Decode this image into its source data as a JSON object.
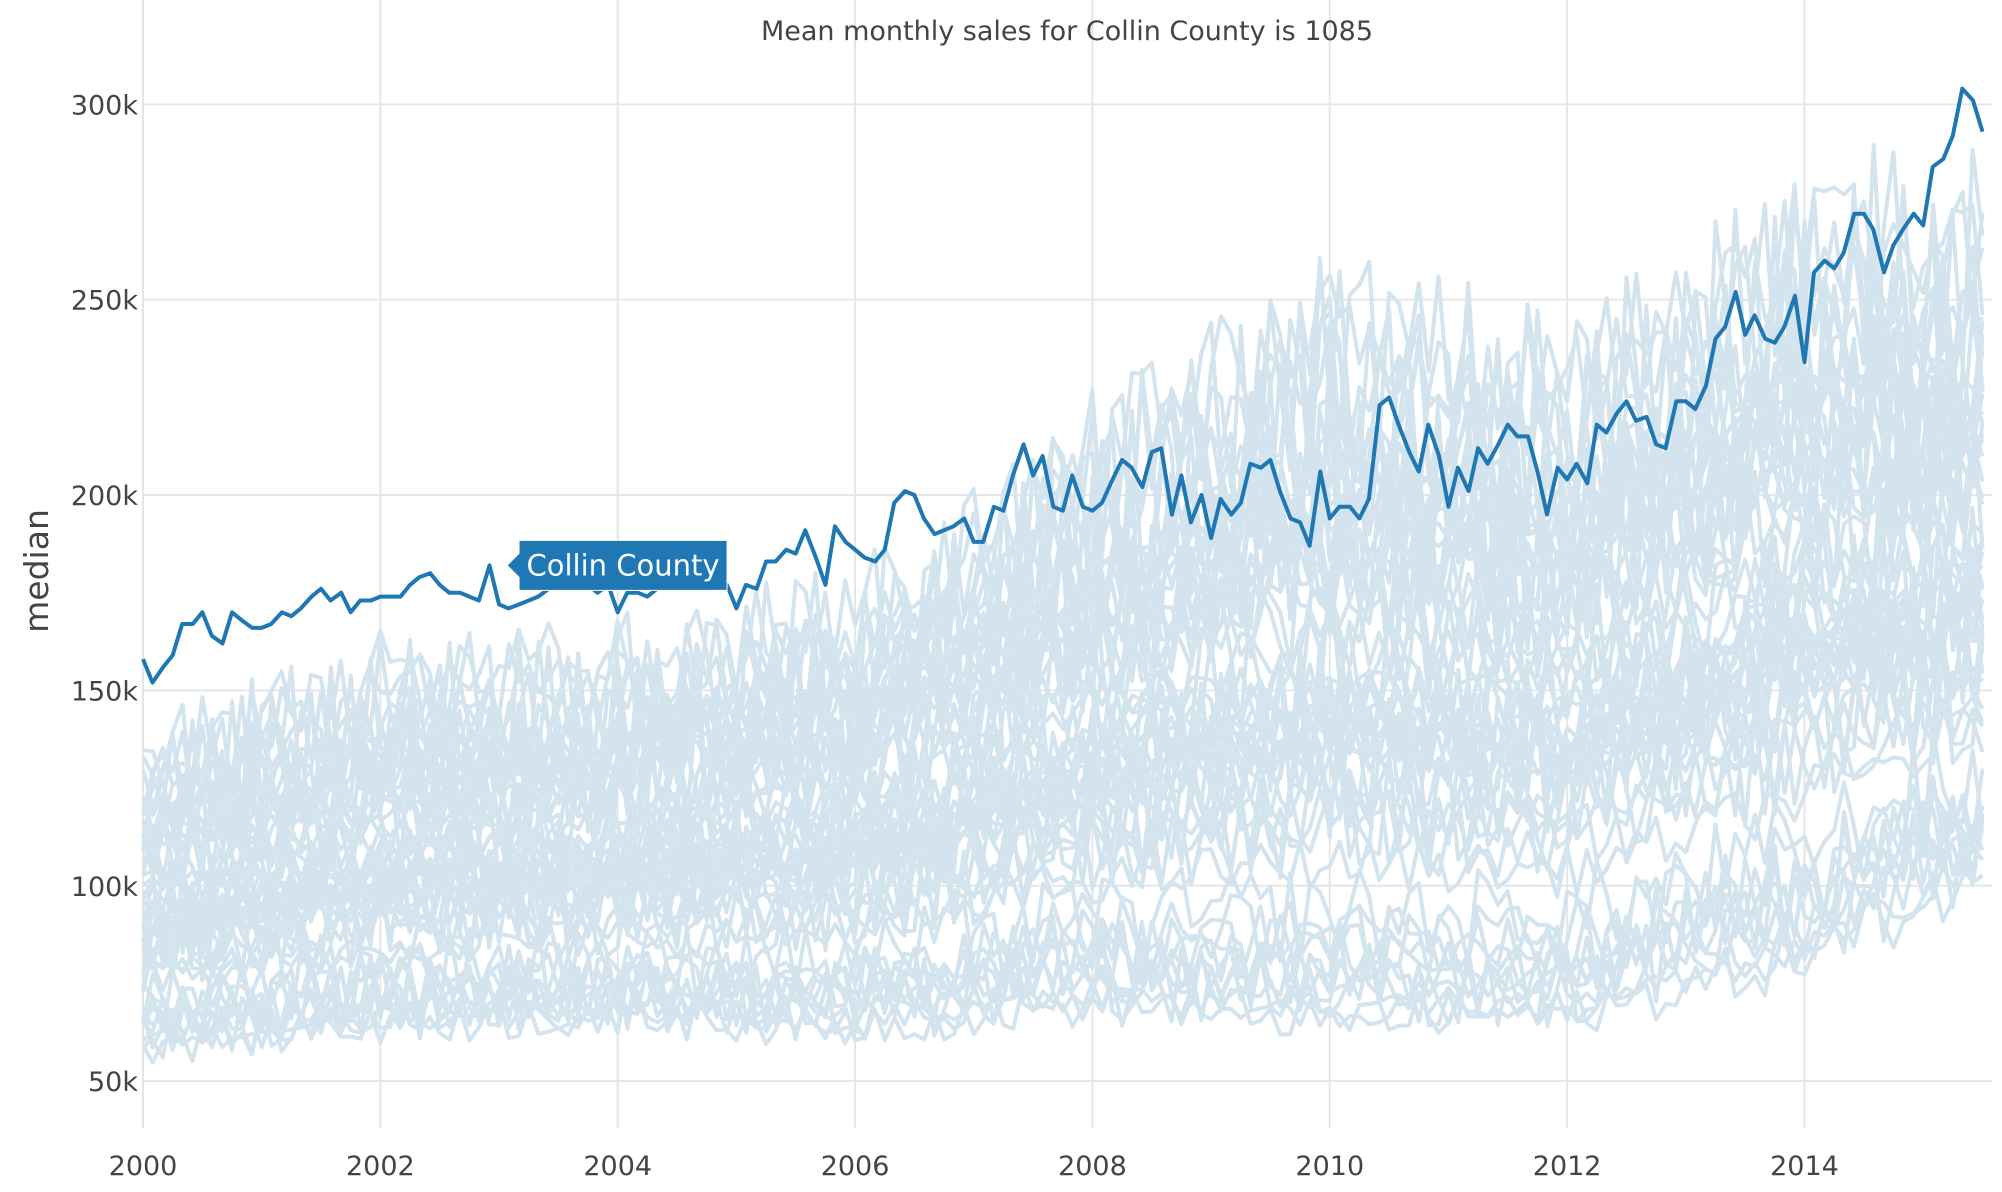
{
  "chart_data": {
    "type": "line",
    "title": "Mean monthly sales for Collin County is 1085",
    "xlabel": "",
    "ylabel": "median",
    "xlim": [
      2000,
      2015.58
    ],
    "ylim": [
      38000,
      318000
    ],
    "x_ticks": [
      2000,
      2002,
      2004,
      2006,
      2008,
      2010,
      2012,
      2014
    ],
    "x_tick_labels": [
      "2000",
      "2002",
      "2004",
      "2006",
      "2008",
      "2010",
      "2012",
      "2014"
    ],
    "y_ticks": [
      50000,
      100000,
      150000,
      200000,
      250000,
      300000
    ],
    "y_tick_labels": [
      "50k",
      "100k",
      "150k",
      "200k",
      "250k",
      "300k"
    ],
    "grid": true,
    "highlight_color": "#1f77b4",
    "background_color": "#d3e4ef",
    "highlight": {
      "name": "Collin County",
      "tooltip_x": 2003.0,
      "tooltip_y": 182000,
      "points": [
        [
          2000.0,
          158000
        ],
        [
          2000.08,
          152000
        ],
        [
          2000.17,
          156000
        ],
        [
          2000.25,
          159000
        ],
        [
          2000.33,
          167000
        ],
        [
          2000.42,
          167000
        ],
        [
          2000.5,
          170000
        ],
        [
          2000.58,
          164000
        ],
        [
          2000.67,
          162000
        ],
        [
          2000.75,
          170000
        ],
        [
          2000.83,
          168000
        ],
        [
          2000.92,
          166000
        ],
        [
          2001.0,
          166000
        ],
        [
          2001.08,
          167000
        ],
        [
          2001.17,
          170000
        ],
        [
          2001.25,
          169000
        ],
        [
          2001.33,
          171000
        ],
        [
          2001.42,
          174000
        ],
        [
          2001.5,
          176000
        ],
        [
          2001.58,
          173000
        ],
        [
          2001.67,
          175000
        ],
        [
          2001.75,
          170000
        ],
        [
          2001.83,
          173000
        ],
        [
          2001.92,
          173000
        ],
        [
          2002.0,
          174000
        ],
        [
          2002.08,
          174000
        ],
        [
          2002.17,
          174000
        ],
        [
          2002.25,
          177000
        ],
        [
          2002.33,
          179000
        ],
        [
          2002.42,
          180000
        ],
        [
          2002.5,
          177000
        ],
        [
          2002.58,
          175000
        ],
        [
          2002.67,
          175000
        ],
        [
          2002.75,
          174000
        ],
        [
          2002.83,
          173000
        ],
        [
          2002.92,
          182000
        ],
        [
          2003.0,
          172000
        ],
        [
          2003.08,
          171000
        ],
        [
          2003.17,
          172000
        ],
        [
          2003.25,
          173000
        ],
        [
          2003.33,
          174000
        ],
        [
          2003.42,
          176000
        ],
        [
          2003.5,
          178000
        ],
        [
          2003.58,
          177000
        ],
        [
          2003.67,
          176000
        ],
        [
          2003.75,
          177000
        ],
        [
          2003.83,
          175000
        ],
        [
          2003.92,
          177000
        ],
        [
          2004.0,
          170000
        ],
        [
          2004.08,
          175000
        ],
        [
          2004.17,
          175000
        ],
        [
          2004.25,
          174000
        ],
        [
          2004.33,
          176000
        ],
        [
          2004.42,
          177000
        ],
        [
          2004.5,
          178000
        ],
        [
          2004.58,
          177000
        ],
        [
          2004.67,
          178000
        ],
        [
          2004.75,
          177000
        ],
        [
          2004.83,
          176000
        ],
        [
          2004.92,
          177000
        ],
        [
          2005.0,
          171000
        ],
        [
          2005.08,
          177000
        ],
        [
          2005.17,
          176000
        ],
        [
          2005.25,
          183000
        ],
        [
          2005.33,
          183000
        ],
        [
          2005.42,
          186000
        ],
        [
          2005.5,
          185000
        ],
        [
          2005.58,
          191000
        ],
        [
          2005.67,
          184000
        ],
        [
          2005.75,
          177000
        ],
        [
          2005.83,
          192000
        ],
        [
          2005.92,
          188000
        ],
        [
          2006.0,
          186000
        ],
        [
          2006.08,
          184000
        ],
        [
          2006.17,
          183000
        ],
        [
          2006.25,
          186000
        ],
        [
          2006.33,
          198000
        ],
        [
          2006.42,
          201000
        ],
        [
          2006.5,
          200000
        ],
        [
          2006.58,
          194000
        ],
        [
          2006.67,
          190000
        ],
        [
          2006.75,
          191000
        ],
        [
          2006.83,
          192000
        ],
        [
          2006.92,
          194000
        ],
        [
          2007.0,
          188000
        ],
        [
          2007.08,
          188000
        ],
        [
          2007.17,
          197000
        ],
        [
          2007.25,
          196000
        ],
        [
          2007.33,
          205000
        ],
        [
          2007.42,
          213000
        ],
        [
          2007.5,
          205000
        ],
        [
          2007.58,
          210000
        ],
        [
          2007.67,
          197000
        ],
        [
          2007.75,
          196000
        ],
        [
          2007.83,
          205000
        ],
        [
          2007.92,
          197000
        ],
        [
          2008.0,
          196000
        ],
        [
          2008.08,
          198000
        ],
        [
          2008.17,
          204000
        ],
        [
          2008.25,
          209000
        ],
        [
          2008.33,
          207000
        ],
        [
          2008.42,
          202000
        ],
        [
          2008.5,
          211000
        ],
        [
          2008.58,
          212000
        ],
        [
          2008.67,
          195000
        ],
        [
          2008.75,
          205000
        ],
        [
          2008.83,
          193000
        ],
        [
          2008.92,
          200000
        ],
        [
          2009.0,
          189000
        ],
        [
          2009.08,
          199000
        ],
        [
          2009.17,
          195000
        ],
        [
          2009.25,
          198000
        ],
        [
          2009.33,
          208000
        ],
        [
          2009.42,
          207000
        ],
        [
          2009.5,
          209000
        ],
        [
          2009.58,
          201000
        ],
        [
          2009.67,
          194000
        ],
        [
          2009.75,
          193000
        ],
        [
          2009.83,
          187000
        ],
        [
          2009.92,
          206000
        ],
        [
          2010.0,
          194000
        ],
        [
          2010.08,
          197000
        ],
        [
          2010.17,
          197000
        ],
        [
          2010.25,
          194000
        ],
        [
          2010.33,
          199000
        ],
        [
          2010.42,
          223000
        ],
        [
          2010.5,
          225000
        ],
        [
          2010.58,
          218000
        ],
        [
          2010.67,
          211000
        ],
        [
          2010.75,
          206000
        ],
        [
          2010.83,
          218000
        ],
        [
          2010.92,
          210000
        ],
        [
          2011.0,
          197000
        ],
        [
          2011.08,
          207000
        ],
        [
          2011.17,
          201000
        ],
        [
          2011.25,
          212000
        ],
        [
          2011.33,
          208000
        ],
        [
          2011.42,
          213000
        ],
        [
          2011.5,
          218000
        ],
        [
          2011.58,
          215000
        ],
        [
          2011.67,
          215000
        ],
        [
          2011.75,
          206000
        ],
        [
          2011.83,
          195000
        ],
        [
          2011.92,
          207000
        ],
        [
          2012.0,
          204000
        ],
        [
          2012.08,
          208000
        ],
        [
          2012.17,
          203000
        ],
        [
          2012.25,
          218000
        ],
        [
          2012.33,
          216000
        ],
        [
          2012.42,
          221000
        ],
        [
          2012.5,
          224000
        ],
        [
          2012.58,
          219000
        ],
        [
          2012.67,
          220000
        ],
        [
          2012.75,
          213000
        ],
        [
          2012.83,
          212000
        ],
        [
          2012.92,
          224000
        ],
        [
          2013.0,
          224000
        ],
        [
          2013.08,
          222000
        ],
        [
          2013.17,
          228000
        ],
        [
          2013.25,
          240000
        ],
        [
          2013.33,
          243000
        ],
        [
          2013.42,
          252000
        ],
        [
          2013.5,
          241000
        ],
        [
          2013.58,
          246000
        ],
        [
          2013.67,
          240000
        ],
        [
          2013.75,
          239000
        ],
        [
          2013.83,
          243000
        ],
        [
          2013.92,
          251000
        ],
        [
          2014.0,
          234000
        ],
        [
          2014.08,
          257000
        ],
        [
          2014.17,
          260000
        ],
        [
          2014.25,
          258000
        ],
        [
          2014.33,
          262000
        ],
        [
          2014.42,
          272000
        ],
        [
          2014.5,
          272000
        ],
        [
          2014.58,
          268000
        ],
        [
          2014.67,
          257000
        ],
        [
          2014.75,
          264000
        ],
        [
          2014.83,
          268000
        ],
        [
          2014.92,
          272000
        ],
        [
          2015.0,
          269000
        ],
        [
          2015.08,
          284000
        ],
        [
          2015.17,
          286000
        ],
        [
          2015.25,
          292000
        ],
        [
          2015.33,
          304000
        ],
        [
          2015.42,
          301000
        ],
        [
          2015.5,
          293000
        ]
      ]
    },
    "background_series": {
      "count": 60,
      "description_of_distribution": [
        {
          "x": 2000,
          "low": 55000,
          "high": 140000
        },
        {
          "x": 2002,
          "low": 60000,
          "high": 160000
        },
        {
          "x": 2004,
          "low": 62000,
          "high": 163000
        },
        {
          "x": 2006,
          "low": 58000,
          "high": 178000
        },
        {
          "x": 2008,
          "low": 62000,
          "high": 222000
        },
        {
          "x": 2010,
          "low": 55000,
          "high": 262000
        },
        {
          "x": 2012,
          "low": 57000,
          "high": 245000
        },
        {
          "x": 2014,
          "low": 70000,
          "high": 285000
        },
        {
          "x": 2015.58,
          "low": 95000,
          "high": 282000
        }
      ]
    }
  }
}
